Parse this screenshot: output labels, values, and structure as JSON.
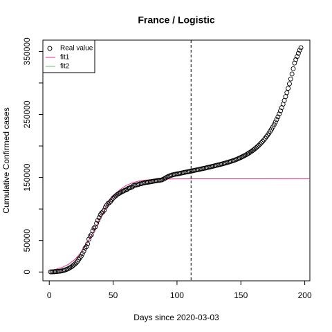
{
  "chart_data": {
    "type": "scatter",
    "title": "France / Logistic",
    "x_label": "Days since 2020-03-03",
    "y_label": "Cumulative Confirmed cases",
    "xlim": [
      -5,
      204
    ],
    "ylim": [
      -14000,
      368000
    ],
    "xticks": [
      0,
      50,
      100,
      150,
      200
    ],
    "yticks": [
      0,
      50000,
      150000,
      250000,
      350000
    ],
    "yminor_ticks": [
      100000,
      200000,
      300000
    ],
    "vline": 111,
    "legend": "top-left",
    "series": [
      {
        "name": "Real value",
        "color": "#000000",
        "x": [
          1,
          2,
          3,
          4,
          5,
          6,
          7,
          8,
          9,
          10,
          11,
          12,
          13,
          14,
          15,
          16,
          17,
          18,
          19,
          20,
          21,
          22,
          23,
          24,
          25,
          26,
          27,
          28,
          29,
          30,
          31,
          32,
          33,
          34,
          35,
          36,
          37,
          38,
          39,
          40,
          41,
          42,
          43,
          44,
          45,
          46,
          47,
          48,
          49,
          50,
          51,
          52,
          53,
          54,
          55,
          56,
          57,
          58,
          59,
          60,
          61,
          62,
          63,
          64,
          65,
          66,
          67,
          68,
          69,
          70,
          71,
          72,
          73,
          74,
          75,
          76,
          77,
          78,
          79,
          80,
          81,
          82,
          83,
          84,
          85,
          86,
          87,
          88,
          89,
          90,
          91,
          92,
          93,
          94,
          95,
          96,
          97,
          98,
          99,
          100,
          101,
          102,
          103,
          104,
          105,
          106,
          107,
          108,
          109,
          110,
          111,
          112,
          113,
          114,
          115,
          116,
          117,
          118,
          119,
          120,
          121,
          122,
          123,
          124,
          125,
          126,
          127,
          128,
          129,
          130,
          131,
          132,
          133,
          134,
          135,
          136,
          137,
          138,
          139,
          140,
          141,
          142,
          143,
          144,
          145,
          146,
          147,
          148,
          149,
          150,
          151,
          152,
          153,
          154,
          155,
          156,
          157,
          158,
          159,
          160,
          161,
          162,
          163,
          164,
          165,
          166,
          167,
          168,
          169,
          170,
          171,
          172,
          173,
          174,
          175,
          176,
          177,
          178,
          179,
          180,
          181,
          182,
          183,
          184,
          185,
          186,
          187,
          188,
          189,
          190,
          191,
          192,
          193,
          194,
          195,
          196,
          197
        ],
        "values": [
          200,
          250,
          300,
          400,
          600,
          700,
          1000,
          1200,
          1400,
          1800,
          2300,
          2900,
          3700,
          4500,
          5400,
          6600,
          7700,
          9100,
          10900,
          12600,
          14400,
          16700,
          19900,
          22300,
          25200,
          29200,
          32900,
          37600,
          40200,
          44600,
          52100,
          56900,
          59100,
          65200,
          69500,
          71400,
          77200,
          82000,
          86300,
          90700,
          93800,
          95400,
          98000,
          103000,
          106000,
          108800,
          110000,
          112000,
          114600,
          117300,
          119200,
          120800,
          122600,
          124100,
          125000,
          126300,
          127600,
          128400,
          129600,
          130200,
          131300,
          132900,
          133500,
          134300,
          135100,
          137100,
          137500,
          138000,
          138500,
          139100,
          139900,
          140200,
          140800,
          141300,
          141800,
          142200,
          142400,
          142700,
          143100,
          143400,
          143800,
          144200,
          144500,
          144900,
          145300,
          145500,
          145800,
          146100,
          147000,
          148000,
          149200,
          150500,
          151500,
          152400,
          153200,
          153800,
          154300,
          154800,
          155200,
          155600,
          156000,
          156400,
          156900,
          157300,
          157700,
          158100,
          158500,
          158900,
          159300,
          159700,
          160100,
          160500,
          161000,
          161400,
          161800,
          162300,
          162700,
          163100,
          163600,
          164000,
          164500,
          164900,
          165400,
          165900,
          166300,
          166800,
          167300,
          167800,
          168300,
          168800,
          169300,
          169800,
          170300,
          170800,
          171300,
          171900,
          172400,
          173000,
          173600,
          174200,
          174800,
          175400,
          176100,
          176800,
          177500,
          178300,
          179100,
          180000,
          180900,
          181800,
          182800,
          183800,
          184900,
          186000,
          187200,
          188400,
          189700,
          191100,
          192500,
          194000,
          195600,
          197300,
          199100,
          201000,
          203000,
          205100,
          207300,
          209600,
          212100,
          214700,
          217400,
          220300,
          223400,
          226700,
          230200,
          233900,
          237800,
          241900,
          246200,
          250800,
          255700,
          260900,
          266400,
          272200,
          278300,
          284700,
          291500,
          298700,
          306300,
          314300,
          322700,
          331600,
          337000,
          342000,
          347000,
          352000,
          356000
        ]
      },
      {
        "name": "fit1",
        "color": "#e7298a",
        "x": [
          0,
          5,
          10,
          15,
          20,
          25,
          30,
          35,
          40,
          45,
          50,
          55,
          60,
          65,
          70,
          75,
          80,
          85,
          90,
          100,
          110,
          204
        ],
        "values": [
          2480,
          4250,
          7220,
          12100,
          19800,
          31200,
          46800,
          65800,
          86100,
          104600,
          119400,
          130100,
          137100,
          141500,
          144200,
          145800,
          146700,
          147200,
          147500,
          147800,
          147900,
          148000
        ]
      },
      {
        "name": "fit2",
        "color": "#66c266"
      }
    ]
  }
}
